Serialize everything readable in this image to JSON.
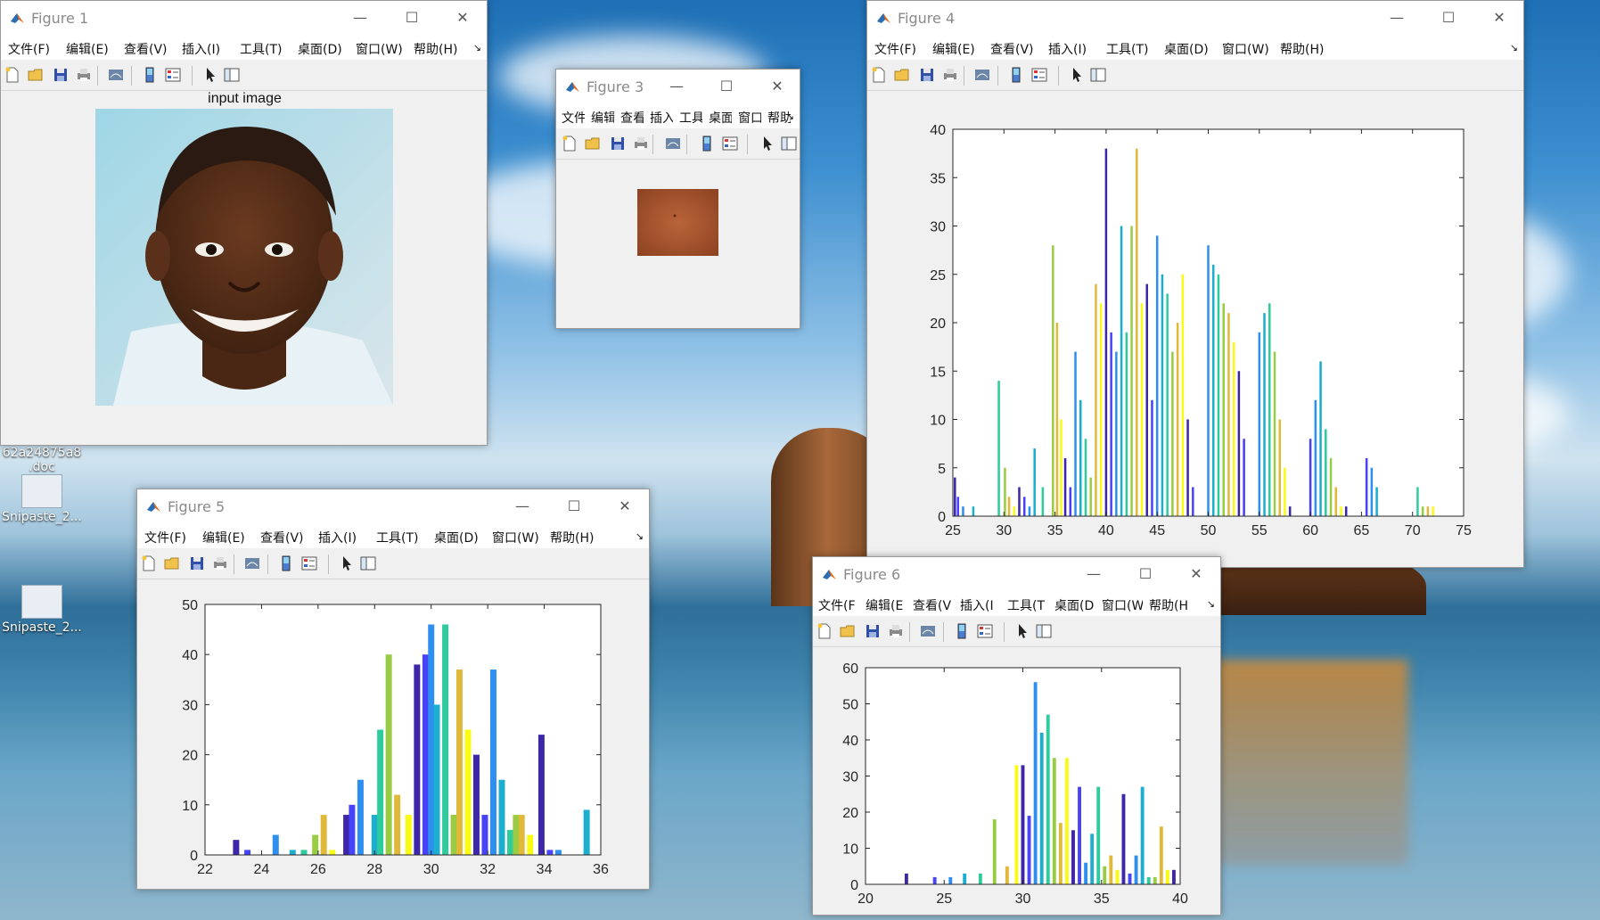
{
  "icons": {
    "matlab_logo": "matlab-logo-icon",
    "toolbar": [
      "new-figure-icon",
      "open-icon",
      "save-icon",
      "print-icon",
      "link-plot-icon",
      "insert-colorbar-icon",
      "insert-legend-icon",
      "pointer-icon",
      "property-inspector-icon"
    ]
  },
  "colors": {
    "bar_palette": [
      "#3e26a8",
      "#4743f8",
      "#2f8ff1",
      "#1caecf",
      "#2ecb9c",
      "#98cc43",
      "#e1b93a",
      "#f9fb15"
    ]
  },
  "window_controls": {
    "minimize": "—",
    "maximize": "☐",
    "close": "✕"
  },
  "desktop_icons": [
    {
      "label_lines": [
        "62a24875a8",
        ".doc"
      ]
    },
    {
      "label_lines": [
        "Snipaste_2..."
      ]
    },
    {
      "label_lines": [
        "Snipaste_2..."
      ]
    }
  ],
  "figure1": {
    "title": "Figure 1",
    "menu": [
      "文件(F)",
      "编辑(E)",
      "查看(V)",
      "插入(I)",
      "工具(T)",
      "桌面(D)",
      "窗口(W)",
      "帮助(H)"
    ],
    "more": "↘",
    "image_title": "input image"
  },
  "figure3": {
    "title": "Figure 3",
    "menu": [
      "文件",
      "编辑",
      "查看",
      "插入",
      "工具",
      "桌面",
      "窗口",
      "帮助"
    ],
    "more": "↘"
  },
  "figure4": {
    "title": "Figure 4",
    "menu": [
      "文件(F)",
      "编辑(E)",
      "查看(V)",
      "插入(I)",
      "工具(T)",
      "桌面(D)",
      "窗口(W)",
      "帮助(H)"
    ],
    "more": "↘"
  },
  "figure5": {
    "title": "Figure 5",
    "menu": [
      "文件(F)",
      "编辑(E)",
      "查看(V)",
      "插入(I)",
      "工具(T)",
      "桌面(D)",
      "窗口(W)",
      "帮助(H)"
    ],
    "more": "↘"
  },
  "figure6": {
    "title": "Figure 6",
    "menu": [
      "文件(F",
      "编辑(E",
      "查看(V",
      "插入(I",
      "工具(T",
      "桌面(D",
      "窗口(W",
      "帮助(H"
    ],
    "more": "↘"
  },
  "chart_data": [
    {
      "id": "figure4",
      "type": "bar",
      "xlim": [
        25,
        75
      ],
      "ylim": [
        0,
        40
      ],
      "xticks": [
        25,
        30,
        35,
        40,
        45,
        50,
        55,
        60,
        65,
        70,
        75
      ],
      "yticks": [
        0,
        5,
        10,
        15,
        20,
        25,
        30,
        35,
        40
      ],
      "x": [
        25.2,
        25.5,
        26,
        27,
        29.5,
        30.1,
        30.5,
        31,
        31.5,
        32,
        32.5,
        33,
        33.8,
        34.8,
        35.2,
        35.6,
        36,
        36.5,
        37,
        37.5,
        38,
        38.5,
        39,
        39.5,
        40,
        40.5,
        41,
        41.5,
        42,
        42.5,
        43,
        43.5,
        44,
        44.5,
        45,
        45.5,
        46,
        46.5,
        47,
        47.5,
        48,
        48.5,
        50,
        50.5,
        51,
        51.5,
        52,
        52.5,
        53,
        53.5,
        55,
        55.5,
        56,
        56.5,
        57,
        57.5,
        58,
        60,
        60.5,
        61,
        61.5,
        62,
        62.5,
        63,
        63.5,
        65.5,
        66,
        66.5,
        70.5,
        71,
        71.5,
        72
      ],
      "values": [
        4,
        2,
        1,
        1,
        14,
        5,
        2,
        1,
        3,
        2,
        1,
        7,
        3,
        28,
        20,
        10,
        6,
        3,
        17,
        12,
        8,
        4,
        24,
        22,
        38,
        19,
        17,
        30,
        19,
        30,
        38,
        22,
        24,
        12,
        29,
        25,
        23,
        17,
        20,
        25,
        10,
        3,
        28,
        26,
        25,
        22,
        21,
        18,
        15,
        8,
        19,
        21,
        22,
        17,
        10,
        5,
        1,
        8,
        12,
        16,
        9,
        6,
        3,
        1,
        1,
        6,
        5,
        3,
        3,
        1,
        1,
        1
      ]
    },
    {
      "id": "figure5",
      "type": "bar",
      "xlim": [
        22,
        36
      ],
      "ylim": [
        0,
        50
      ],
      "xticks": [
        22,
        24,
        26,
        28,
        30,
        32,
        34,
        36
      ],
      "yticks": [
        0,
        10,
        20,
        30,
        40,
        50
      ],
      "x": [
        23.1,
        23.5,
        24.5,
        25.1,
        25.5,
        25.9,
        26.2,
        26.5,
        27,
        27.2,
        27.5,
        28,
        28.2,
        28.5,
        28.8,
        29.2,
        29.5,
        29.8,
        30,
        30.2,
        30.5,
        30.8,
        31,
        31.3,
        31.6,
        31.9,
        32.2,
        32.5,
        32.8,
        33,
        33.2,
        33.5,
        33.9,
        34.2,
        34.5,
        35.5
      ],
      "values": [
        3,
        1,
        4,
        1,
        1,
        4,
        8,
        1,
        8,
        10,
        15,
        8,
        25,
        40,
        12,
        8,
        38,
        40,
        46,
        30,
        46,
        8,
        37,
        25,
        20,
        8,
        37,
        15,
        5,
        8,
        8,
        4,
        24,
        1,
        1,
        9
      ]
    },
    {
      "id": "figure6",
      "type": "bar",
      "xlim": [
        20,
        40
      ],
      "ylim": [
        0,
        60
      ],
      "xticks": [
        20,
        25,
        30,
        35,
        40
      ],
      "yticks": [
        0,
        10,
        20,
        30,
        40,
        50,
        60
      ],
      "x": [
        22.6,
        24.4,
        25.4,
        26.3,
        27.3,
        28.2,
        29,
        29.6,
        30,
        30.4,
        30.8,
        31.2,
        31.6,
        32,
        32.4,
        32.8,
        33.2,
        33.6,
        34,
        34.4,
        34.8,
        35.2,
        35.6,
        36,
        36.4,
        36.8,
        37.2,
        37.6,
        38,
        38.4,
        38.8,
        39.2,
        39.6
      ],
      "values": [
        3,
        2,
        2,
        3,
        3,
        18,
        5,
        33,
        33,
        19,
        56,
        42,
        47,
        35,
        17,
        35,
        15,
        27,
        6,
        14,
        27,
        5,
        8,
        4,
        25,
        3,
        8,
        27,
        2,
        2,
        16,
        4,
        4
      ]
    }
  ]
}
